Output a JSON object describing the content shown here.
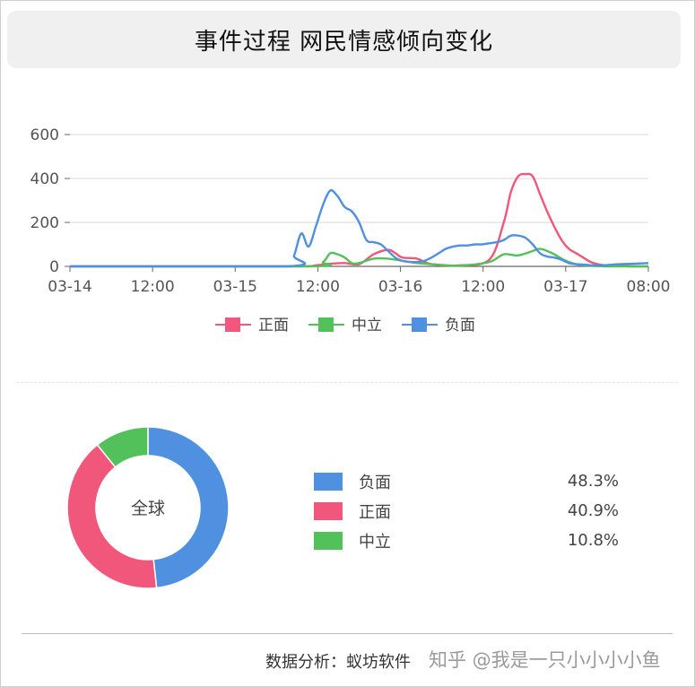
{
  "title": "事件过程 网民情感倾向变化",
  "footer": "数据分析：蚁坊软件",
  "watermark": "知乎 @我是一只小小小小鱼",
  "colors": {
    "positive": "#f0577a",
    "neutral": "#52c159",
    "negative": "#4f90e0"
  },
  "chart_data": [
    {
      "type": "line",
      "x_ticks": [
        "03-14",
        "12:00",
        "03-15",
        "12:00",
        "03-16",
        "12:00",
        "03-17",
        "08:00"
      ],
      "y_ticks": [
        "0",
        "200",
        "400",
        "600"
      ],
      "ylim": [
        0,
        600
      ],
      "x_range_hours": [
        0,
        80
      ],
      "legend": [
        "正面",
        "中立",
        "负面"
      ],
      "legend_position": "bottom",
      "series": [
        {
          "name": "正面",
          "color": "#f0577a",
          "x": [
            0,
            30,
            34,
            36,
            38,
            40,
            42,
            44,
            45,
            46,
            48,
            50,
            54,
            58,
            60,
            61,
            62,
            63,
            64,
            65,
            66,
            67,
            68,
            69,
            70,
            71,
            72,
            73,
            74,
            76,
            78,
            80
          ],
          "y": [
            0,
            0,
            5,
            12,
            15,
            10,
            55,
            75,
            60,
            40,
            35,
            10,
            5,
            30,
            200,
            340,
            410,
            420,
            410,
            330,
            250,
            180,
            120,
            80,
            60,
            40,
            20,
            10,
            5,
            2,
            0,
            0
          ]
        },
        {
          "name": "中立",
          "color": "#52c159",
          "x": [
            0,
            33,
            35,
            36,
            37,
            38,
            39,
            40,
            42,
            44,
            46,
            48,
            50,
            52,
            54,
            58,
            60,
            62,
            64,
            65,
            66,
            67,
            68,
            69,
            70,
            71,
            72,
            74,
            76,
            78,
            80
          ],
          "y": [
            0,
            0,
            20,
            60,
            55,
            40,
            15,
            15,
            35,
            35,
            25,
            15,
            10,
            5,
            3,
            20,
            55,
            50,
            70,
            80,
            70,
            55,
            35,
            20,
            10,
            5,
            3,
            0,
            0,
            0,
            0
          ]
        },
        {
          "name": "负面",
          "color": "#4f90e0",
          "x": [
            0,
            30,
            31,
            32,
            33,
            34,
            35,
            36,
            37,
            38,
            39,
            40,
            41,
            42,
            43,
            44,
            45,
            46,
            47,
            48,
            49,
            50,
            51,
            52,
            53,
            54,
            55,
            56,
            57,
            58,
            59,
            60,
            61,
            62,
            63,
            64,
            65,
            66,
            67,
            68,
            69,
            70,
            71,
            72,
            73,
            74,
            75,
            76,
            78,
            80
          ],
          "y": [
            0,
            0,
            50,
            150,
            90,
            180,
            280,
            345,
            320,
            270,
            250,
            200,
            120,
            110,
            100,
            70,
            40,
            25,
            20,
            20,
            25,
            40,
            60,
            80,
            90,
            95,
            95,
            100,
            100,
            105,
            110,
            120,
            140,
            140,
            130,
            100,
            60,
            45,
            40,
            30,
            15,
            10,
            8,
            5,
            5,
            5,
            8,
            10,
            12,
            15
          ]
        }
      ]
    },
    {
      "type": "pie",
      "center_label": "全球",
      "labels": [
        "负面",
        "正面",
        "中立"
      ],
      "values": [
        48.3,
        40.9,
        10.8
      ],
      "display": [
        "48.3%",
        "40.9%",
        "10.8%"
      ],
      "colors": [
        "#4f90e0",
        "#f0577a",
        "#52c159"
      ]
    }
  ]
}
